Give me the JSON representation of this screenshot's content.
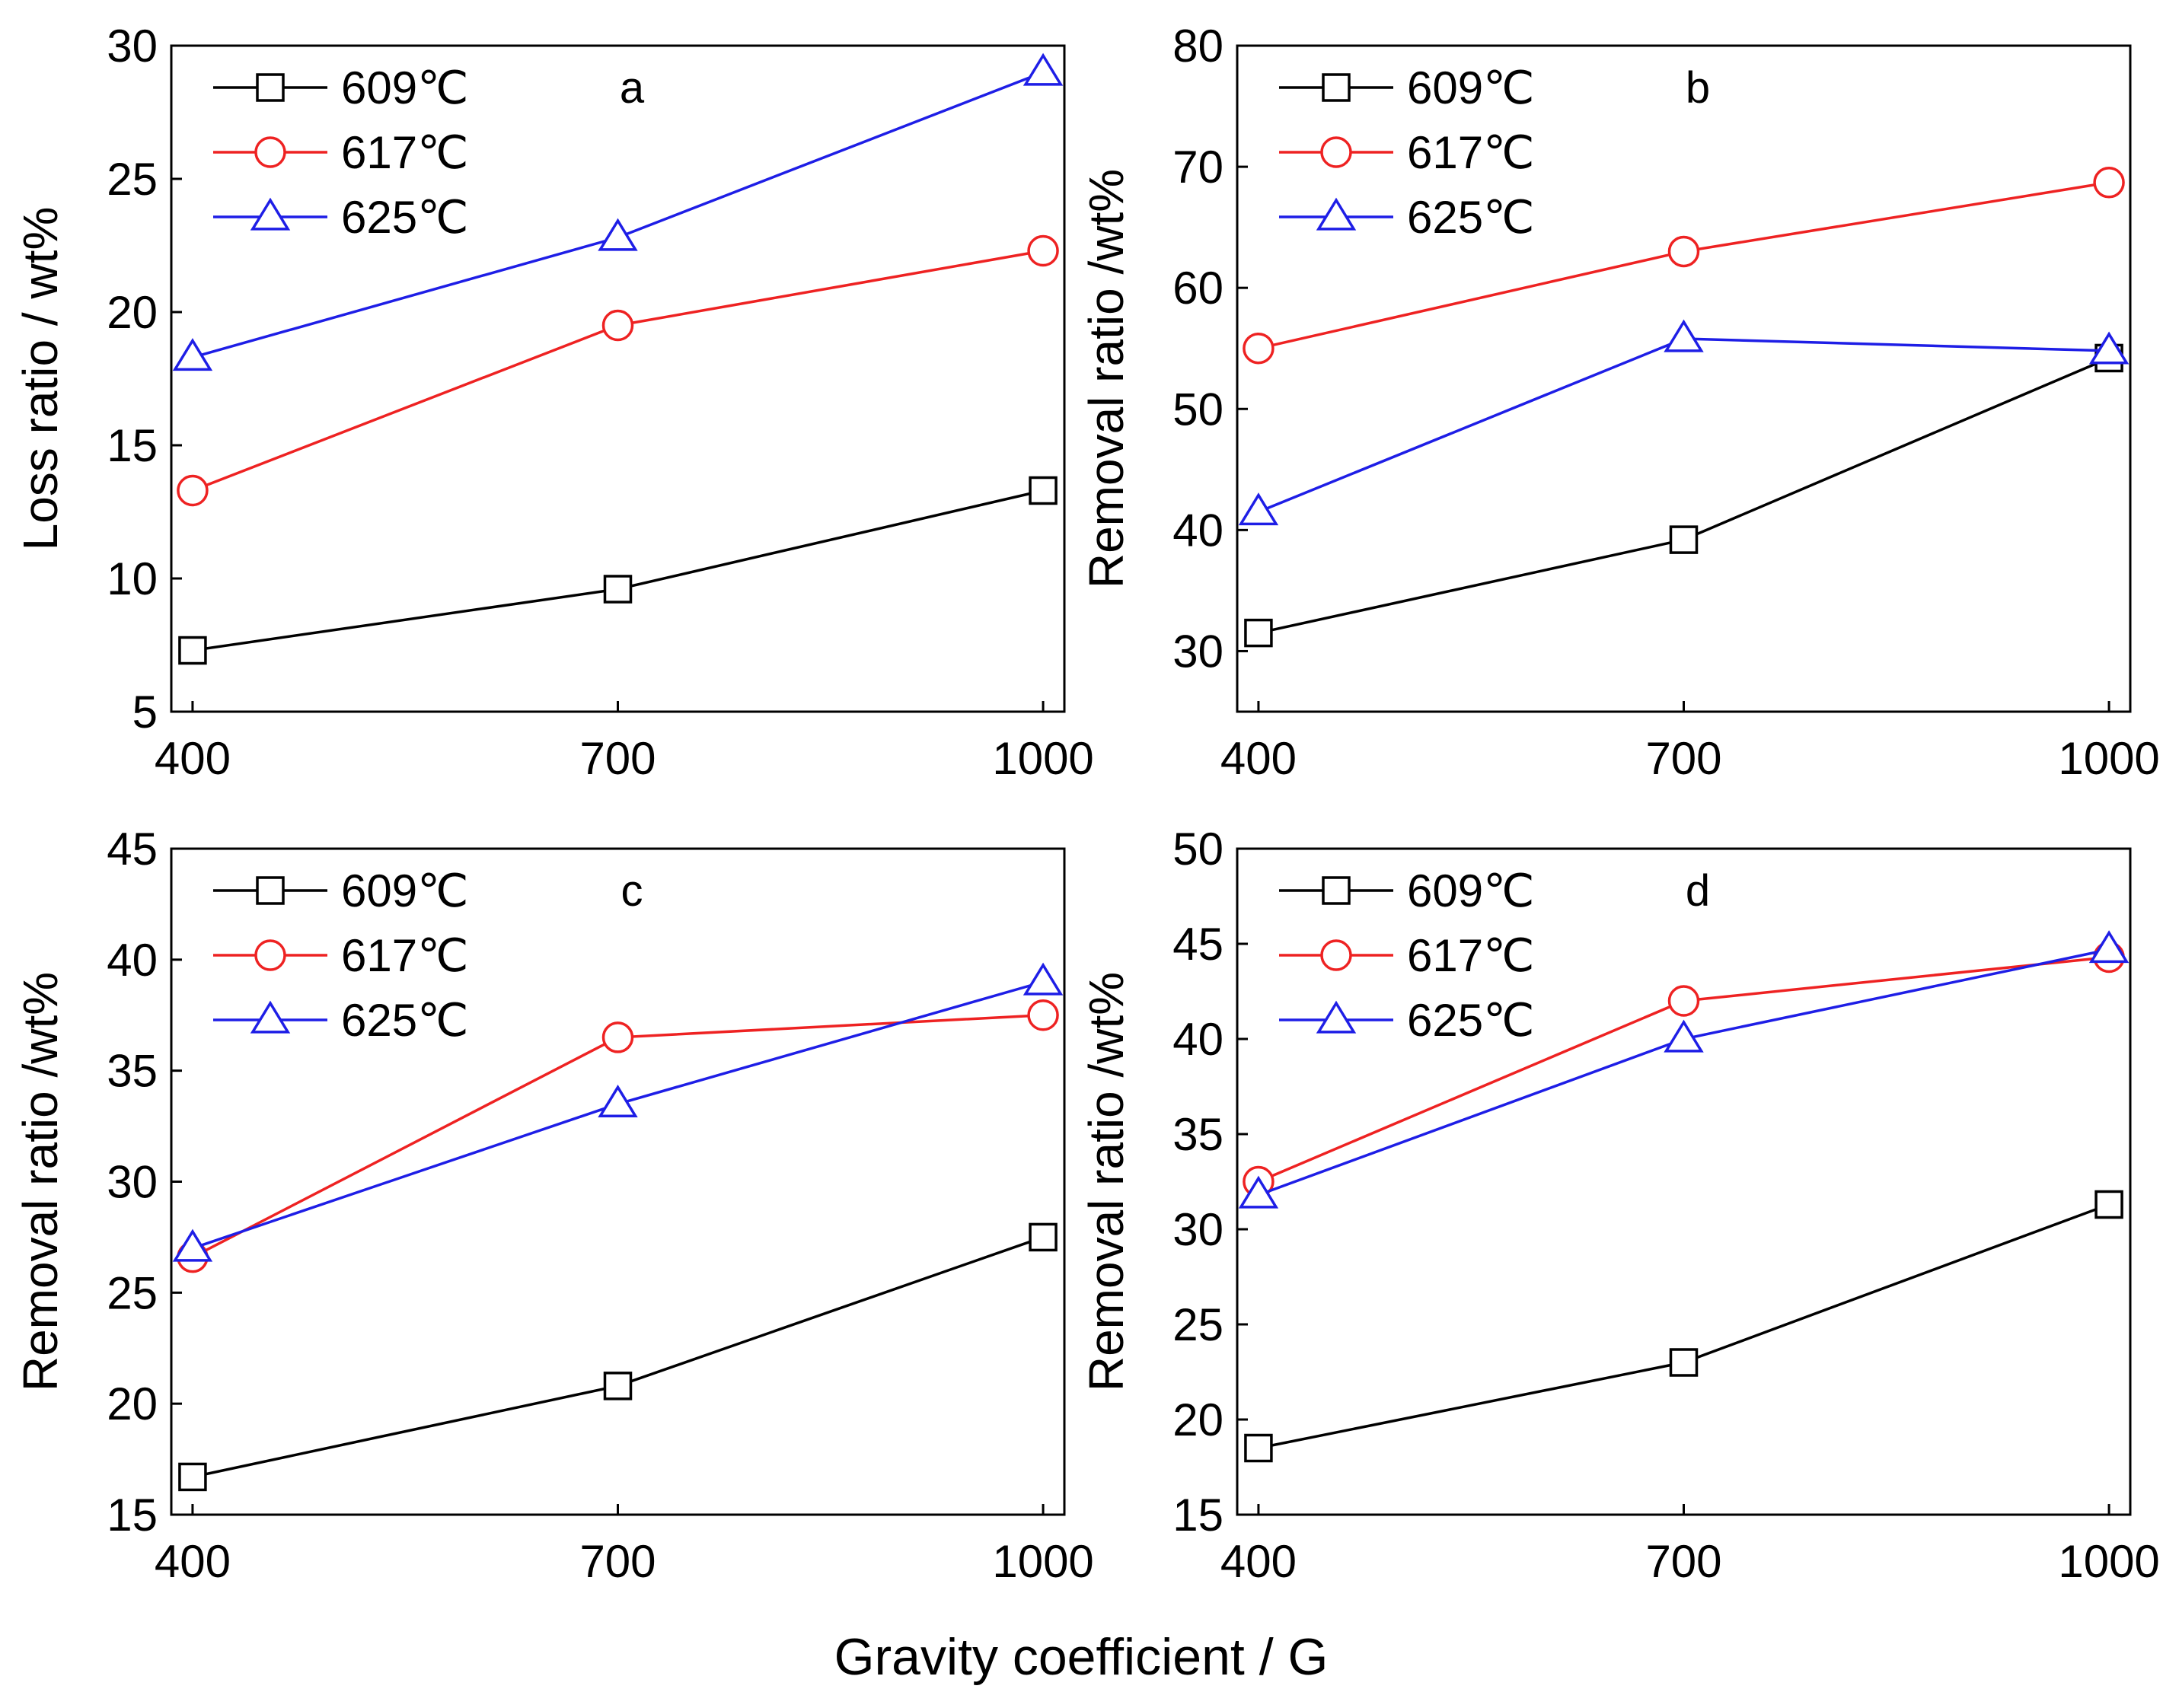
{
  "figure": {
    "xlabel": "Gravity coefficient / G",
    "colors": {
      "609": "#000000",
      "617": "#ee2222",
      "625": "#1e1ee6"
    }
  },
  "chart_data": [
    {
      "type": "line",
      "panel": "a",
      "x": [
        400,
        700,
        1000
      ],
      "x_tick_labels": [
        "400",
        "700",
        "1000"
      ],
      "ylabel": "Loss ratio / wt%",
      "ylim": [
        5,
        30
      ],
      "y_ticks": [
        5,
        10,
        15,
        20,
        25,
        30
      ],
      "y_tick_labels": [
        "5",
        "10",
        "15",
        "20",
        "25",
        "30"
      ],
      "series": [
        {
          "name": "609℃",
          "marker": "square",
          "color": "#000000",
          "values": [
            7.3,
            9.6,
            13.3
          ]
        },
        {
          "name": "617℃",
          "marker": "circle",
          "color": "#ee2222",
          "values": [
            13.3,
            19.5,
            22.3
          ]
        },
        {
          "name": "625℃",
          "marker": "triangle",
          "color": "#1e1ee6",
          "values": [
            18.3,
            22.8,
            29.0
          ]
        }
      ]
    },
    {
      "type": "line",
      "panel": "b",
      "x": [
        400,
        700,
        1000
      ],
      "x_tick_labels": [
        "400",
        "700",
        "1000"
      ],
      "ylabel": "Removal ratio /wt%",
      "ylim": [
        25,
        80
      ],
      "y_ticks": [
        30,
        40,
        50,
        60,
        70,
        80
      ],
      "y_tick_labels": [
        "30",
        "40",
        "50",
        "60",
        "70",
        "80"
      ],
      "series": [
        {
          "name": "609℃",
          "marker": "square",
          "color": "#000000",
          "values": [
            31.5,
            39.2,
            54.2
          ]
        },
        {
          "name": "617℃",
          "marker": "circle",
          "color": "#ee2222",
          "values": [
            55.0,
            63.0,
            68.7
          ]
        },
        {
          "name": "625℃",
          "marker": "triangle",
          "color": "#1e1ee6",
          "values": [
            41.5,
            55.8,
            54.8
          ]
        }
      ]
    },
    {
      "type": "line",
      "panel": "c",
      "x": [
        400,
        700,
        1000
      ],
      "x_tick_labels": [
        "400",
        "700",
        "1000"
      ],
      "ylabel": "Removal ratio /wt%",
      "ylim": [
        15,
        45
      ],
      "y_ticks": [
        15,
        20,
        25,
        30,
        35,
        40,
        45
      ],
      "y_tick_labels": [
        "15",
        "20",
        "25",
        "30",
        "35",
        "40",
        "45"
      ],
      "series": [
        {
          "name": "609℃",
          "marker": "square",
          "color": "#000000",
          "values": [
            16.7,
            20.8,
            27.5
          ]
        },
        {
          "name": "617℃",
          "marker": "circle",
          "color": "#ee2222",
          "values": [
            26.6,
            36.5,
            37.5
          ]
        },
        {
          "name": "625℃",
          "marker": "triangle",
          "color": "#1e1ee6",
          "values": [
            27.0,
            33.5,
            39.0
          ]
        }
      ]
    },
    {
      "type": "line",
      "panel": "d",
      "x": [
        400,
        700,
        1000
      ],
      "x_tick_labels": [
        "400",
        "700",
        "1000"
      ],
      "ylabel": "Removal ratio /wt%",
      "ylim": [
        15,
        50
      ],
      "y_ticks": [
        15,
        20,
        25,
        30,
        35,
        40,
        45,
        50
      ],
      "y_tick_labels": [
        "15",
        "20",
        "25",
        "30",
        "35",
        "40",
        "45",
        "50"
      ],
      "series": [
        {
          "name": "609℃",
          "marker": "square",
          "color": "#000000",
          "values": [
            18.5,
            23.0,
            31.3
          ]
        },
        {
          "name": "617℃",
          "marker": "circle",
          "color": "#ee2222",
          "values": [
            32.5,
            42.0,
            44.3
          ]
        },
        {
          "name": "625℃",
          "marker": "triangle",
          "color": "#1e1ee6",
          "values": [
            31.8,
            40.0,
            44.7
          ]
        }
      ]
    }
  ]
}
